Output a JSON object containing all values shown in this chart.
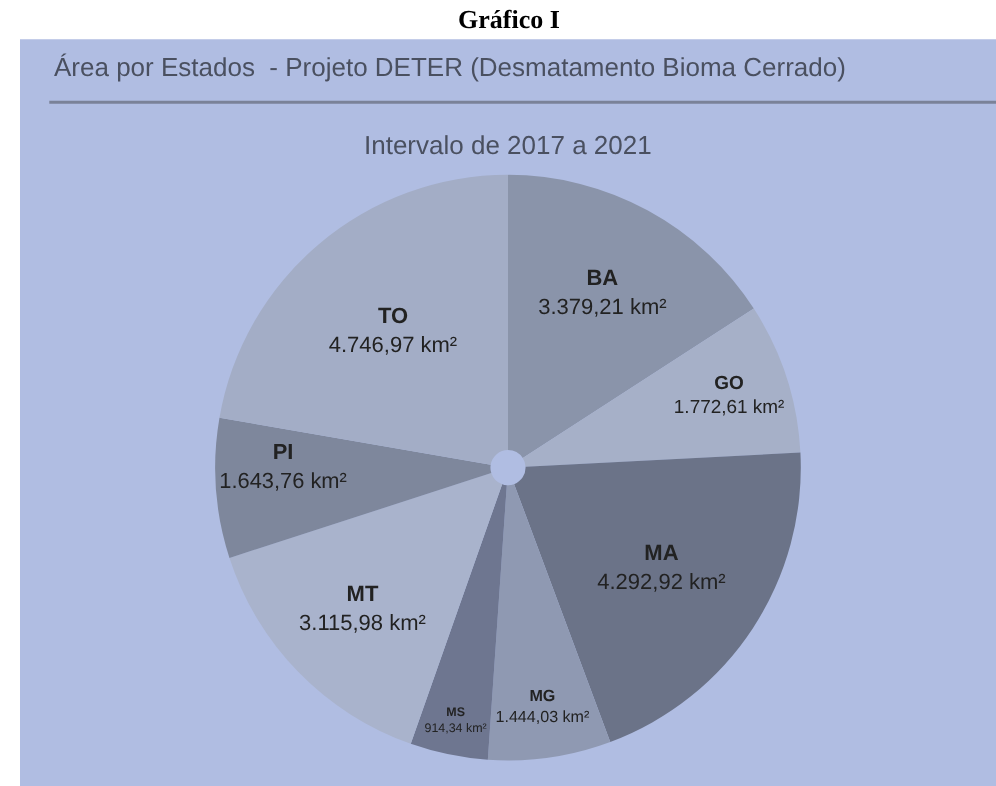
{
  "chart_data": {
    "type": "pie",
    "title": "Área por Estados  - Projeto DETER (Desmatamento Bioma Cerrado)",
    "subtitle": "Intervalo de 2017 a 2021",
    "annotations": [
      "Gráfico I"
    ],
    "categories": [
      "BA",
      "GO",
      "MA",
      "MG",
      "MS",
      "MT",
      "PI",
      "TO"
    ],
    "values": [
      3379.21,
      1772.61,
      4292.92,
      1444.03,
      914.34,
      3115.98,
      1643.76,
      4746.97
    ],
    "value_labels": [
      "3.379,21 km²",
      "1.772,61 km²",
      "4.292,92 km²",
      "1.444,03 km²",
      "914,34 km²",
      "3.115,98 km²",
      "1.643,76 km²",
      "4.746,97 km²"
    ],
    "colors": [
      "#8a94aa",
      "#a6b0c8",
      "#6b7388",
      "#8f99b2",
      "#6e7690",
      "#a9b3cc",
      "#7e879c",
      "#a3adc6"
    ]
  }
}
